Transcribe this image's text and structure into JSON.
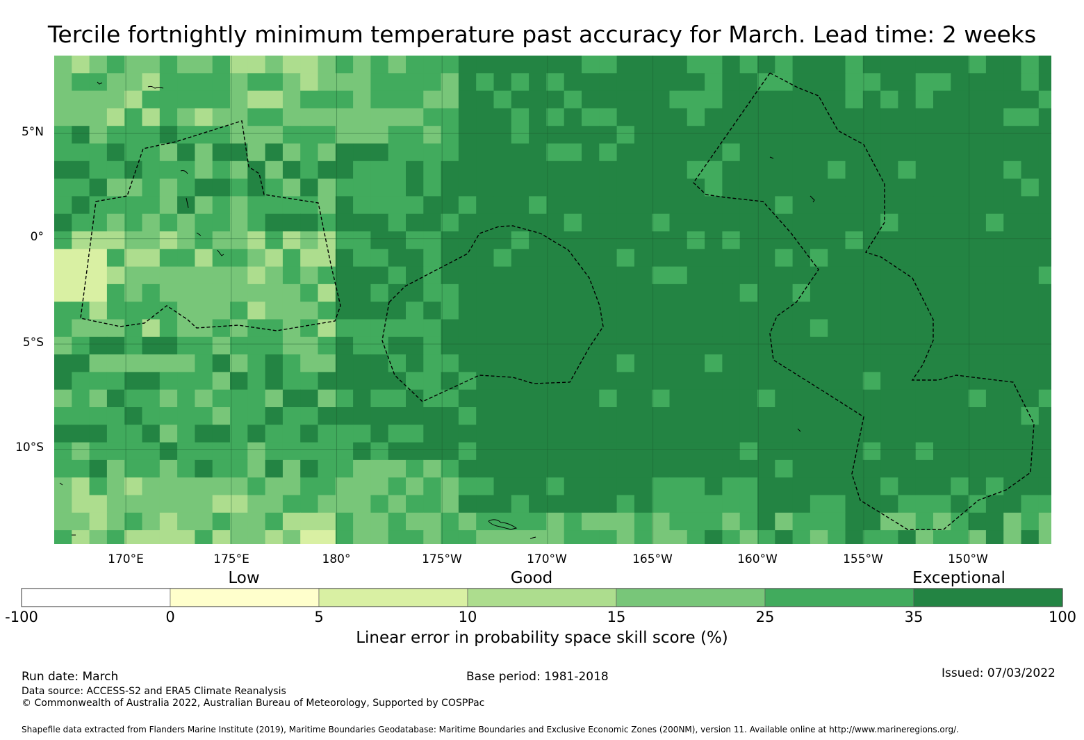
{
  "title": "Tercile fortnightly minimum temperature past accuracy for March. Lead time: 2 weeks",
  "map": {
    "extent": {
      "lon_west": 166.6,
      "lon_east": 213.9,
      "lat_north": 8.7,
      "lat_south": -14.5
    },
    "lat_labels": [
      "5°N",
      "0°",
      "5°S",
      "10°S"
    ],
    "lon_labels": [
      "170°E",
      "175°E",
      "180°",
      "175°W",
      "170°W",
      "165°W",
      "160°W",
      "155°W",
      "150°W"
    ],
    "lat_values": [
      5,
      0,
      -5,
      -10
    ],
    "lon_values": [
      170,
      175,
      180,
      185,
      190,
      195,
      200,
      205,
      210
    ]
  },
  "legend": {
    "categories": [
      "Low",
      "Good",
      "Exceptional"
    ],
    "boundaries": [
      "-100",
      "0",
      "5",
      "10",
      "15",
      "25",
      "35",
      "100"
    ],
    "colors": [
      "#ffffff",
      "#ffffcc",
      "#d9f0a3",
      "#addd8e",
      "#78c679",
      "#41ab5d",
      "#238443"
    ],
    "title": "Linear error in probability space skill score (%)"
  },
  "footer": {
    "run_date": "Run date: March",
    "base_period": "Base period: 1981-2018",
    "issued": "Issued: 07/03/2022",
    "data_source": "Data source: ACCESS-S2 and ERA5 Climate Reanalysis",
    "copyright": "© Commonwealth of Australia 2022, Australian Bureau of Meteorology, Supported by COSPPac",
    "shapefile": "Shapefile data extracted from Flanders Marine Institute (2019), Maritime Boundaries Geodatabase: Maritime Boundaries and Exclusive Economic Zones (200NM), version 11. Available online at http://www.marineregions.org/."
  }
}
